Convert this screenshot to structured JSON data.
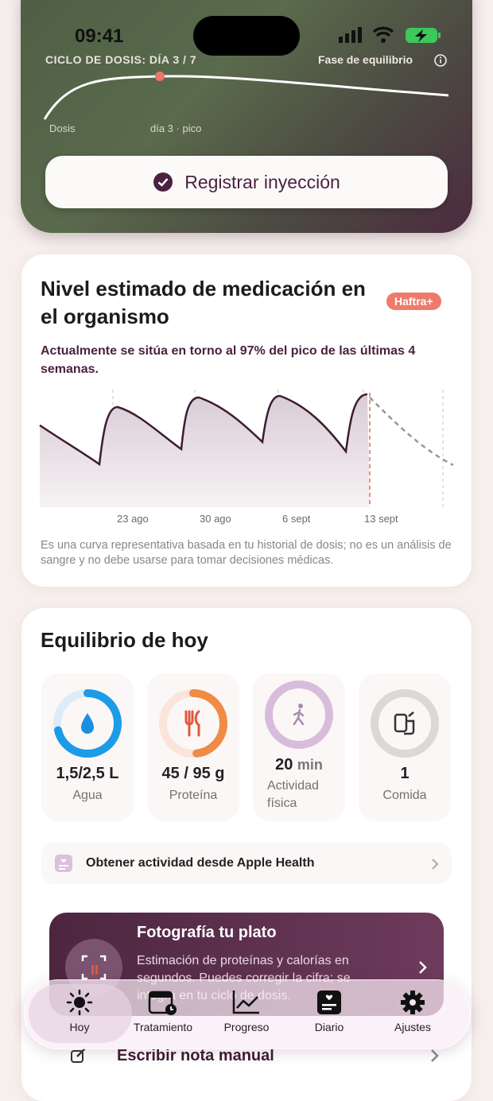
{
  "status_bar": {
    "time": "09:41"
  },
  "header": {
    "cycle_label": "CICLO DE DOSIS: DÍA 3 / 7",
    "phase": "Fase de equilibrio",
    "curve_start_label": "Dosis",
    "curve_peak_label": "día 3 · pico",
    "button": "Registrar inyección"
  },
  "medication_card": {
    "title": "Nivel estimado de medicación en el organismo",
    "badge": "Haftra+",
    "summary": "Actualmente se sitúa en torno al 97% del pico de las últimas 4 semanas.",
    "dates": [
      "23 ago",
      "30 ago",
      "6 sept",
      "13 sept"
    ],
    "disclaimer": "Es una curva representativa basada en tu historial de dosis; no es un análisis de sangre y no debe usarse para tomar decisiones médicas."
  },
  "balance_card": {
    "title": "Equilibrio de hoy",
    "tiles": [
      {
        "value": "1,5/2,5 L",
        "label": "Agua"
      },
      {
        "value": "45 / 95 g",
        "label": "Proteína"
      },
      {
        "value": "20",
        "unit": "min",
        "label": "Actividad física"
      },
      {
        "value": "1",
        "label": "Comida"
      }
    ],
    "health_row": "Obtener actividad desde Apple Health",
    "photo_card": {
      "title": "Fotografía tu plato",
      "text": "Estimación de proteínas y calorías en segundos. Puedes corregir la cifra; se integra en tu ciclo de dosis."
    },
    "manual_note": "Escribir nota manual"
  },
  "tab_bar": {
    "tabs": [
      "Hoy",
      "Tratamiento",
      "Progreso",
      "Diario",
      "Ajustes"
    ]
  }
}
